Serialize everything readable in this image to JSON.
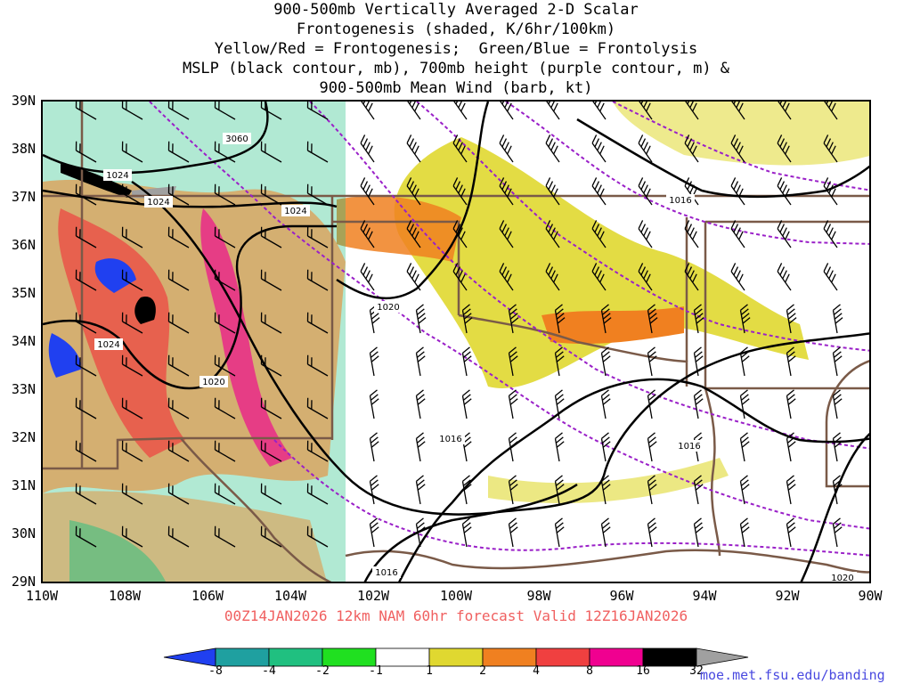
{
  "title": {
    "line1": "900-500mb Vertically Averaged 2-D Scalar",
    "line2": "Frontogenesis (shaded, K/6hr/100km)",
    "line3": "Yellow/Red = Frontogenesis;  Green/Blue = Frontolysis",
    "line4": "MSLP (black contour, mb), 700mb height (purple contour, m) &",
    "line5": "900-500mb Mean Wind (barb, kt)"
  },
  "axes": {
    "lat_labels": [
      "39N",
      "38N",
      "37N",
      "36N",
      "35N",
      "34N",
      "33N",
      "32N",
      "31N",
      "30N",
      "29N"
    ],
    "lon_labels": [
      "110W",
      "108W",
      "106W",
      "104W",
      "102W",
      "100W",
      "98W",
      "96W",
      "94W",
      "92W",
      "90W"
    ]
  },
  "contour_labels": {
    "mslp": [
      "1024",
      "1024",
      "1024",
      "1024",
      "1020",
      "1020",
      "1016",
      "1016",
      "1016",
      "1016",
      "1020"
    ],
    "height": [
      "3060"
    ]
  },
  "valid_text": "00Z14JAN2026 12km NAM 60hr forecast Valid 12Z16JAN2026",
  "colorbar": {
    "labels": [
      "-8",
      "-4",
      "-2",
      "-1",
      "1",
      "2",
      "4",
      "8",
      "16",
      "32"
    ],
    "colors": [
      "#2040f0",
      "#1fa0a0",
      "#20c080",
      "#20e020",
      "#ffffff",
      "#e0d830",
      "#f08020",
      "#f04040",
      "#f00090",
      "#000000",
      "#a0a0a0"
    ]
  },
  "site_url": "moe.met.fsu.edu/banding",
  "colors": {
    "mslp_contour": "#000000",
    "height_contour": "#9a20c8",
    "borders": "#7a5a48",
    "title_valid": "#f06060",
    "url": "#4a4ae0"
  }
}
